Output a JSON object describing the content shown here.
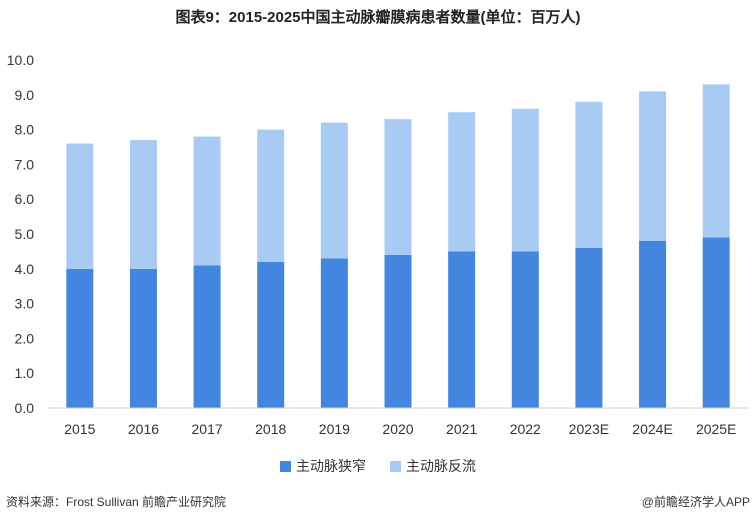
{
  "title": "图表9：2015-2025中国主动脉瓣膜病患者数量(单位：百万人)",
  "source": "资料来源：Frost Sullivan 前瞻产业研究院",
  "credit": "@前瞻经济学人APP",
  "colors": {
    "stenosis": "#4286e0",
    "regurgitation": "#a8cbf3"
  },
  "chart_data": {
    "type": "bar",
    "stacked": true,
    "categories": [
      "2015",
      "2016",
      "2017",
      "2018",
      "2019",
      "2020",
      "2021",
      "2022",
      "2023E",
      "2024E",
      "2025E"
    ],
    "series": [
      {
        "name": "主动脉狭窄",
        "values": [
          4.0,
          4.0,
          4.1,
          4.2,
          4.3,
          4.4,
          4.5,
          4.5,
          4.6,
          4.8,
          4.9
        ]
      },
      {
        "name": "主动脉反流",
        "values": [
          3.6,
          3.7,
          3.7,
          3.8,
          3.9,
          3.9,
          4.0,
          4.1,
          4.2,
          4.3,
          4.4
        ]
      }
    ],
    "ylim": [
      0,
      10
    ],
    "yticks": [
      "0.0",
      "1.0",
      "2.0",
      "3.0",
      "4.0",
      "5.0",
      "6.0",
      "7.0",
      "8.0",
      "9.0",
      "10.0"
    ],
    "grid": false,
    "legend_position": "bottom"
  }
}
